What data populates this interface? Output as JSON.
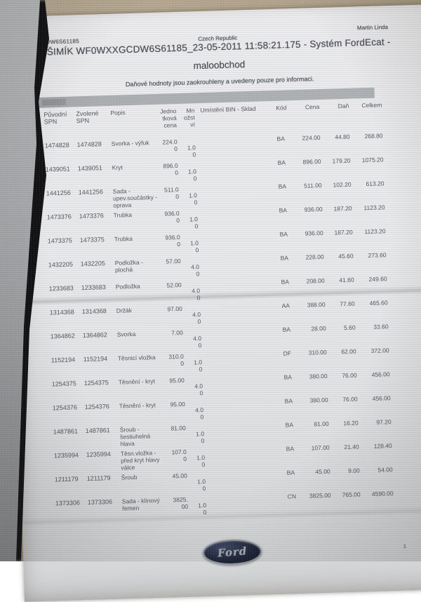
{
  "meta": {
    "author": "Martin Linda",
    "doc_code": "CDW6S61185",
    "country": "Czech Republic",
    "title": "ŠIMÍK WF0WXXGCDW6S61185_23-05-2011 11:58:21.175 - Systém FordEcat -",
    "subtitle": "maloobchod",
    "note": "Daňové hodnoty jsou zaokrouhleny a uvedeny pouze pro informaci.",
    "page_number": "1",
    "logo_text": "Ford"
  },
  "colors": {
    "paper": "#e9eaec",
    "background_surface": "#b2a48d",
    "header_band": "#adb0b3",
    "text": "#54585d",
    "ford_oval": "#222a3e"
  },
  "table": {
    "columns": [
      {
        "key": "puvodni_spn",
        "label_lines": [
          "Původní",
          "SPN"
        ]
      },
      {
        "key": "zvolene_spn",
        "label_lines": [
          "Zvolené",
          "SPN"
        ]
      },
      {
        "key": "popis",
        "label_lines": [
          "Popis"
        ]
      },
      {
        "key": "jednotkova_cena",
        "label_lines": [
          "Jedno",
          "tková",
          "cena"
        ]
      },
      {
        "key": "mnozstvi",
        "label_lines": [
          "Mn",
          "ožst",
          "ví"
        ]
      },
      {
        "key": "umisteni",
        "label_lines": [
          "Umístění BIN - Sklad"
        ]
      },
      {
        "key": "kod",
        "label_lines": [
          "Kód"
        ]
      },
      {
        "key": "cena",
        "label_lines": [
          "Cena"
        ]
      },
      {
        "key": "dan",
        "label_lines": [
          "Daň"
        ]
      },
      {
        "key": "celkem",
        "label_lines": [
          "Celkem"
        ]
      }
    ],
    "rows": [
      {
        "puvodni_spn": "1474828",
        "zvolene_spn": "1474828",
        "popis": "Svorka - výfuk",
        "jednotkova_cena": "224.00",
        "mnozstvi": "1.00",
        "umisteni": "",
        "kod": "BA",
        "cena": "224.00",
        "dan": "44.80",
        "celkem": "268.80"
      },
      {
        "puvodni_spn": "1439051",
        "zvolene_spn": "1439051",
        "popis": "Kryt",
        "jednotkova_cena": "896.00",
        "mnozstvi": "1.00",
        "umisteni": "",
        "kod": "BA",
        "cena": "896.00",
        "dan": "179.20",
        "celkem": "1075.20"
      },
      {
        "puvodni_spn": "1441256",
        "zvolene_spn": "1441256",
        "popis": "Sada - upev.součástky - oprava",
        "jednotkova_cena": "511.00",
        "mnozstvi": "1.00",
        "umisteni": "",
        "kod": "BA",
        "cena": "511.00",
        "dan": "102.20",
        "celkem": "613.20"
      },
      {
        "puvodni_spn": "1473376",
        "zvolene_spn": "1473376",
        "popis": "Trubka",
        "jednotkova_cena": "936.00",
        "mnozstvi": "1.00",
        "umisteni": "",
        "kod": "BA",
        "cena": "936.00",
        "dan": "187.20",
        "celkem": "1123.20"
      },
      {
        "puvodni_spn": "1473375",
        "zvolene_spn": "1473375",
        "popis": "Trubka",
        "jednotkova_cena": "936.00",
        "mnozstvi": "1.00",
        "umisteni": "",
        "kod": "BA",
        "cena": "936.00",
        "dan": "187.20",
        "celkem": "1123.20"
      },
      {
        "puvodni_spn": "1432205",
        "zvolene_spn": "1432205",
        "popis": "Podložka - plochá",
        "jednotkova_cena": "57.00",
        "mnozstvi": "4.00",
        "umisteni": "",
        "kod": "BA",
        "cena": "228.00",
        "dan": "45.60",
        "celkem": "273.60"
      },
      {
        "puvodni_spn": "1233683",
        "zvolene_spn": "1233683",
        "popis": "Podložka",
        "jednotkova_cena": "52.00",
        "mnozstvi": "4.00",
        "umisteni": "",
        "kod": "BA",
        "cena": "208.00",
        "dan": "41.60",
        "celkem": "249.60"
      },
      {
        "puvodni_spn": "1314368",
        "zvolene_spn": "1314368",
        "popis": "Držák",
        "jednotkova_cena": "97.00",
        "mnozstvi": "4.00",
        "umisteni": "",
        "kod": "AA",
        "cena": "388.00",
        "dan": "77.60",
        "celkem": "465.60"
      },
      {
        "puvodni_spn": "1364862",
        "zvolene_spn": "1364862",
        "popis": "Svorka",
        "jednotkova_cena": "7.00",
        "mnozstvi": "4.00",
        "umisteni": "",
        "kod": "BA",
        "cena": "28.00",
        "dan": "5.60",
        "celkem": "33.60"
      },
      {
        "puvodni_spn": "1152194",
        "zvolene_spn": "1152194",
        "popis": "Těsnicí vložka",
        "jednotkova_cena": "310.00",
        "mnozstvi": "1.00",
        "umisteni": "",
        "kod": "DF",
        "cena": "310.00",
        "dan": "62.00",
        "celkem": "372.00"
      },
      {
        "puvodni_spn": "1254375",
        "zvolene_spn": "1254375",
        "popis": "Těsnění - kryt",
        "jednotkova_cena": "95.00",
        "mnozstvi": "4.00",
        "umisteni": "",
        "kod": "BA",
        "cena": "380.00",
        "dan": "76.00",
        "celkem": "456.00"
      },
      {
        "puvodni_spn": "1254376",
        "zvolene_spn": "1254376",
        "popis": "Těsnění - kryt",
        "jednotkova_cena": "95.00",
        "mnozstvi": "4.00",
        "umisteni": "",
        "kod": "BA",
        "cena": "380.00",
        "dan": "76.00",
        "celkem": "456.00"
      },
      {
        "puvodni_spn": "1487861",
        "zvolene_spn": "1487861",
        "popis": "Šroub - šestiuhelná hlava",
        "jednotkova_cena": "81.00",
        "mnozstvi": "1.00",
        "umisteni": "",
        "kod": "BA",
        "cena": "81.00",
        "dan": "16.20",
        "celkem": "97.20"
      },
      {
        "puvodni_spn": "1235994",
        "zvolene_spn": "1235994",
        "popis": "Těsn.vložka - před kryt hlavy válce",
        "jednotkova_cena": "107.00",
        "mnozstvi": "1.00",
        "umisteni": "",
        "kod": "BA",
        "cena": "107.00",
        "dan": "21.40",
        "celkem": "128.40"
      },
      {
        "puvodni_spn": "1211179",
        "zvolene_spn": "1211179",
        "popis": "Šroub",
        "jednotkova_cena": "45.00",
        "mnozstvi": "1.00",
        "umisteni": "",
        "kod": "BA",
        "cena": "45.00",
        "dan": "9.00",
        "celkem": "54.00"
      },
      {
        "puvodni_spn": "1373306",
        "zvolene_spn": "1373306",
        "popis": "Sada - klínový řemen",
        "jednotkova_cena": "3825.00",
        "mnozstvi": "1.00",
        "umisteni": "",
        "kod": "CN",
        "cena": "3825.00",
        "dan": "765.00",
        "celkem": "4590.00"
      }
    ]
  }
}
